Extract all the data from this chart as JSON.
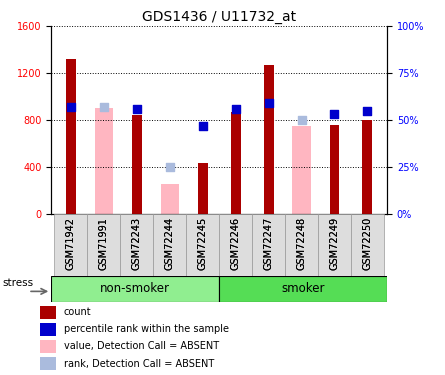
{
  "title": "GDS1436 / U11732_at",
  "samples": [
    "GSM71942",
    "GSM71991",
    "GSM72243",
    "GSM72244",
    "GSM72245",
    "GSM72246",
    "GSM72247",
    "GSM72248",
    "GSM72249",
    "GSM72250"
  ],
  "red_bars": [
    1320,
    null,
    840,
    null,
    430,
    870,
    1270,
    null,
    760,
    800
  ],
  "blue_squares": [
    57.0,
    null,
    56.0,
    null,
    47.0,
    56.0,
    59.0,
    null,
    53.0,
    55.0
  ],
  "pink_bars": [
    null,
    900,
    null,
    250,
    null,
    null,
    null,
    750,
    null,
    null
  ],
  "lightblue_squares": [
    null,
    57.0,
    null,
    25.0,
    null,
    null,
    null,
    50.0,
    null,
    null
  ],
  "ylim_left": [
    0,
    1600
  ],
  "ylim_right": [
    0,
    100
  ],
  "yticks_left": [
    0,
    400,
    800,
    1200,
    1600
  ],
  "yticks_right": [
    0,
    25,
    50,
    75,
    100
  ],
  "yticklabels_right": [
    "0%",
    "25%",
    "50%",
    "75%",
    "100%"
  ],
  "nonsmoker_color": "#90EE90",
  "smoker_color": "#55DD55",
  "stress_label": "stress",
  "red_color": "#AA0000",
  "pink_color": "#FFB6C1",
  "blue_color": "#0000CC",
  "lightblue_color": "#AABBDD",
  "marker_size": 40,
  "title_fontsize": 10,
  "tick_fontsize": 7,
  "legend_fontsize": 7,
  "group_label_fontsize": 8.5,
  "stress_fontsize": 7.5,
  "pink_bar_width": 0.55,
  "red_bar_width": 0.3
}
